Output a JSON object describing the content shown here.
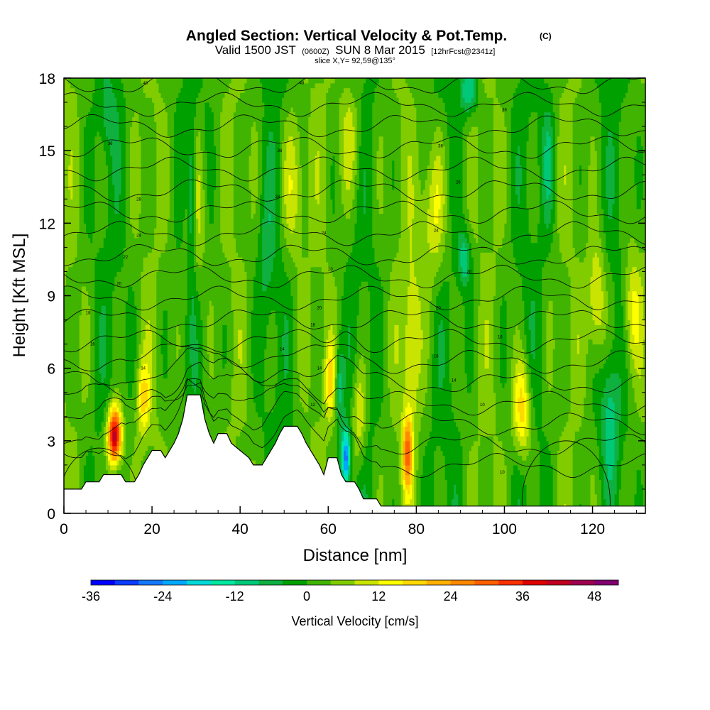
{
  "chart_data": {
    "type": "heatmap",
    "title": "Angled Section: Vertical Velocity & Pot.Temp.",
    "title_suffix": "(C)",
    "subtitle_parts": [
      "Valid 1500 JST",
      "(0600Z)",
      "SUN 8 Mar 2015",
      "[12hrFcst@2341z]"
    ],
    "slice_label": "slice X,Y= 92,59@135°",
    "xlabel": "Distance [nm]",
    "ylabel": "Height [Kft MSL]",
    "xlim": [
      0,
      132
    ],
    "ylim": [
      0,
      18
    ],
    "x_ticks": [
      "0",
      "20",
      "40",
      "60",
      "80",
      "100",
      "120"
    ],
    "y_ticks": [
      "0",
      "3",
      "6",
      "9",
      "12",
      "15",
      "18"
    ],
    "colorbar": {
      "label": "Vertical Velocity [cm/s]",
      "range": [
        -36,
        52
      ],
      "step": 4,
      "ticks": [
        "-36",
        "-24",
        "-12",
        "0",
        "12",
        "24",
        "36",
        "48"
      ],
      "colors": [
        "#0000ff",
        "#0a3cff",
        "#1478ff",
        "#00a8ff",
        "#00d8d8",
        "#00e8a0",
        "#00c878",
        "#10b040",
        "#00a000",
        "#40b400",
        "#80cc00",
        "#c8e400",
        "#ffff00",
        "#ffd800",
        "#ffb000",
        "#ff8800",
        "#ff6000",
        "#ff3000",
        "#e00000",
        "#c00020",
        "#a00050",
        "#800070"
      ]
    },
    "terrain_kft": [
      [
        0,
        1.0
      ],
      [
        4,
        1.0
      ],
      [
        5,
        1.3
      ],
      [
        8,
        1.3
      ],
      [
        9,
        1.6
      ],
      [
        13,
        1.6
      ],
      [
        14,
        1.3
      ],
      [
        16,
        1.3
      ],
      [
        17,
        1.6
      ],
      [
        18,
        2.0
      ],
      [
        19,
        2.3
      ],
      [
        20,
        2.6
      ],
      [
        22,
        2.6
      ],
      [
        23,
        2.3
      ],
      [
        24,
        2.6
      ],
      [
        25,
        2.9
      ],
      [
        26,
        3.3
      ],
      [
        27,
        3.9
      ],
      [
        28,
        4.9
      ],
      [
        31,
        4.9
      ],
      [
        32,
        3.9
      ],
      [
        33,
        3.3
      ],
      [
        34,
        2.9
      ],
      [
        35,
        3.3
      ],
      [
        37,
        3.3
      ],
      [
        38,
        2.9
      ],
      [
        40,
        2.6
      ],
      [
        42,
        2.3
      ],
      [
        43,
        2.0
      ],
      [
        45,
        2.0
      ],
      [
        46,
        2.3
      ],
      [
        47,
        2.6
      ],
      [
        48,
        2.9
      ],
      [
        49,
        3.3
      ],
      [
        50,
        3.6
      ],
      [
        53,
        3.6
      ],
      [
        54,
        3.3
      ],
      [
        55,
        2.9
      ],
      [
        56,
        2.6
      ],
      [
        57,
        2.3
      ],
      [
        58,
        2.0
      ],
      [
        59,
        1.6
      ],
      [
        60,
        2.3
      ],
      [
        62,
        2.3
      ],
      [
        63,
        1.6
      ],
      [
        64,
        1.3
      ],
      [
        66,
        1.3
      ],
      [
        67,
        1.0
      ],
      [
        68,
        0.6
      ],
      [
        71,
        0.6
      ],
      [
        72,
        0.3
      ],
      [
        132,
        0.3
      ]
    ],
    "updrafts": [
      {
        "x": 11.5,
        "z": 3.2,
        "w": 44,
        "sx": 1.6,
        "sz": 1.2
      },
      {
        "x": 18,
        "z": 4.8,
        "w": 14,
        "sx": 1.4,
        "sz": 1.5
      },
      {
        "x": 30,
        "z": 12.5,
        "w": 10,
        "sx": 2.5,
        "sz": 3.5
      },
      {
        "x": 52,
        "z": 13.5,
        "w": 10,
        "sx": 2.5,
        "sz": 3.0
      },
      {
        "x": 60.5,
        "z": 5.5,
        "w": 14,
        "sx": 1.3,
        "sz": 1.5
      },
      {
        "x": 67,
        "z": 4.0,
        "w": 12,
        "sx": 1.5,
        "sz": 2.0
      },
      {
        "x": 78,
        "z": 2.5,
        "w": 24,
        "sx": 1.1,
        "sz": 1.6
      },
      {
        "x": 79,
        "z": 7.0,
        "w": 10,
        "sx": 2.0,
        "sz": 3.5
      },
      {
        "x": 84,
        "z": 12.5,
        "w": 12,
        "sx": 3.0,
        "sz": 3.0
      },
      {
        "x": 104,
        "z": 4.3,
        "w": 18,
        "sx": 2.0,
        "sz": 2.0
      },
      {
        "x": 121,
        "z": 8.8,
        "w": 13,
        "sx": 2.0,
        "sz": 2.5
      },
      {
        "x": 129,
        "z": 8.3,
        "w": 12,
        "sx": 2.0,
        "sz": 2.5
      },
      {
        "x": 65,
        "z": 15.5,
        "w": 9,
        "sx": 2.5,
        "sz": 2.5
      }
    ],
    "downdrafts": [
      {
        "x": 64,
        "z": 2.3,
        "w": -28,
        "sx": 1.0,
        "sz": 1.2
      },
      {
        "x": 62.5,
        "z": 5.2,
        "w": -12,
        "sx": 1.0,
        "sz": 1.8
      },
      {
        "x": 29,
        "z": 13.0,
        "w": -14,
        "sx": 1.0,
        "sz": 3.5
      },
      {
        "x": 91,
        "z": 10.5,
        "w": -12,
        "sx": 1.5,
        "sz": 1.2
      },
      {
        "x": 92,
        "z": 17.5,
        "w": -14,
        "sx": 2.0,
        "sz": 1.0
      },
      {
        "x": 110,
        "z": 14.5,
        "w": -8,
        "sx": 1.5,
        "sz": 2.5
      },
      {
        "x": 124,
        "z": 4.0,
        "w": -10,
        "sx": 2.0,
        "sz": 2.5
      },
      {
        "x": 46,
        "z": 11.0,
        "w": -6,
        "sx": 2.0,
        "sz": 3.0
      },
      {
        "x": 10,
        "z": 16.5,
        "w": -6,
        "sx": 2.0,
        "sz": 1.5
      }
    ],
    "theta_levels": [
      4,
      6,
      8,
      10,
      12,
      14,
      16,
      18,
      20,
      22,
      24,
      26,
      28,
      30,
      32,
      34,
      36,
      38,
      40
    ],
    "contour_labels": [
      {
        "text": "40",
        "x": 18.5,
        "z": 17.8
      },
      {
        "text": "40",
        "x": 54,
        "z": 17.8
      },
      {
        "text": "36",
        "x": 100,
        "z": 16.7
      },
      {
        "text": "36",
        "x": 10.5,
        "z": 15.3
      },
      {
        "text": "36",
        "x": 49,
        "z": 15.0
      },
      {
        "text": "36",
        "x": 85.5,
        "z": 15.2
      },
      {
        "text": "26",
        "x": 89.5,
        "z": 13.7
      },
      {
        "text": "28",
        "x": 17,
        "z": 13.0
      },
      {
        "text": "28",
        "x": 48.5,
        "z": 13.1
      },
      {
        "text": "24",
        "x": 17,
        "z": 11.5
      },
      {
        "text": "24",
        "x": 59,
        "z": 11.6
      },
      {
        "text": "24",
        "x": 84.5,
        "z": 11.7
      },
      {
        "text": "22",
        "x": 14,
        "z": 10.6
      },
      {
        "text": "20",
        "x": 60.5,
        "z": 10.1
      },
      {
        "text": "20",
        "x": 92,
        "z": 10.0
      },
      {
        "text": "20",
        "x": 12.5,
        "z": 9.5
      },
      {
        "text": "20",
        "x": 58,
        "z": 8.5
      },
      {
        "text": "20",
        "x": 85,
        "z": 8.5
      },
      {
        "text": "18",
        "x": 5.5,
        "z": 8.3
      },
      {
        "text": "18",
        "x": 56.5,
        "z": 7.8
      },
      {
        "text": "16",
        "x": 6.5,
        "z": 7.0
      },
      {
        "text": "16",
        "x": 99,
        "z": 7.3
      },
      {
        "text": "14",
        "x": 49.5,
        "z": 6.8
      },
      {
        "text": "16",
        "x": 84.5,
        "z": 6.5
      },
      {
        "text": "14",
        "x": 18,
        "z": 6.0
      },
      {
        "text": "14",
        "x": 58,
        "z": 6.0
      },
      {
        "text": "14",
        "x": 88.5,
        "z": 5.5
      },
      {
        "text": "12",
        "x": 56.5,
        "z": 4.5
      },
      {
        "text": "10",
        "x": 95,
        "z": 4.5
      },
      {
        "text": "10",
        "x": 99.5,
        "z": 1.7
      }
    ]
  }
}
